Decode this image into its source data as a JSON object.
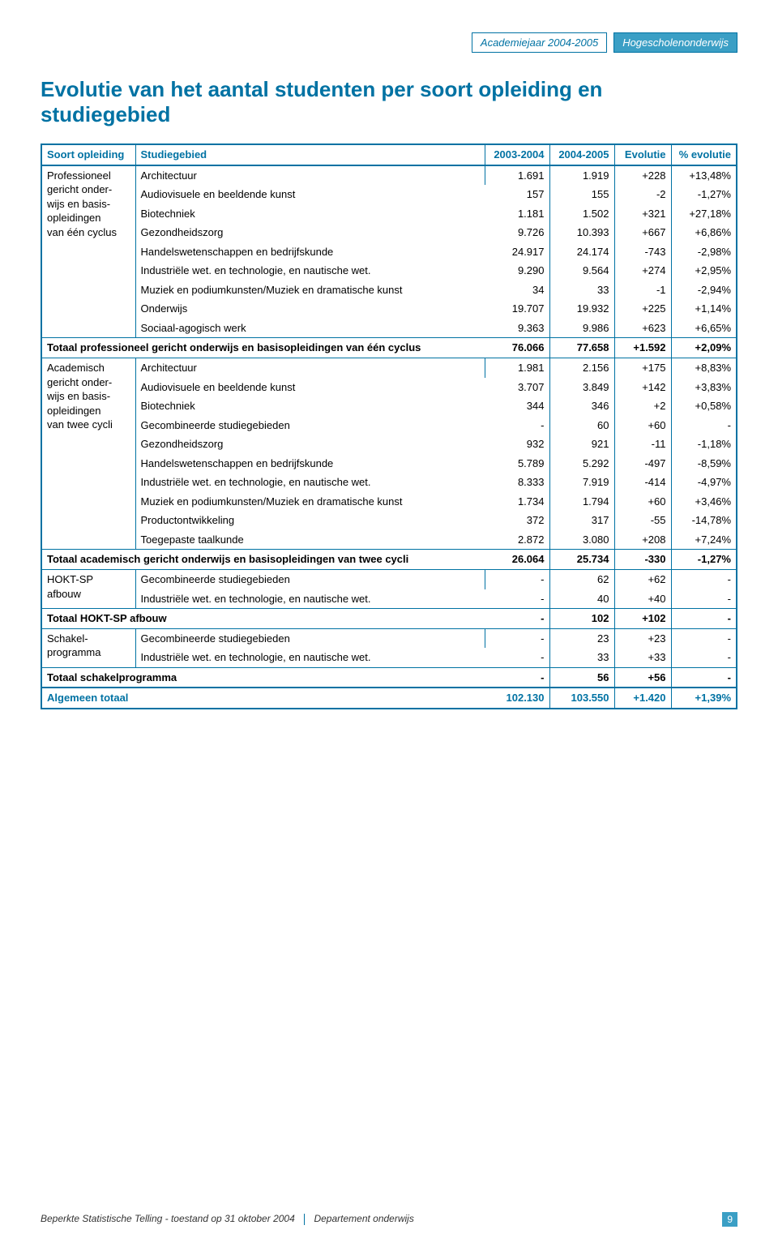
{
  "header": {
    "year_tag": "Academiejaar 2004-2005",
    "type_tag": "Hogescholenonderwijs"
  },
  "title": "Evolutie van het aantal studenten per soort opleiding en studiegebied",
  "table": {
    "columns": [
      "Soort opleiding",
      "Studiegebied",
      "2003-2004",
      "2004-2005",
      "Evolutie",
      "% evolutie"
    ],
    "groups": [
      {
        "category_lines": [
          "Professioneel",
          "gericht onder-",
          "wijs en basis-",
          "opleidingen",
          "van één cyclus"
        ],
        "rows": [
          {
            "label": "Architectuur",
            "v": [
              "1.691",
              "1.919",
              "+228",
              "+13,48%"
            ]
          },
          {
            "label": "Audiovisuele en beeldende kunst",
            "v": [
              "157",
              "155",
              "-2",
              "-1,27%"
            ]
          },
          {
            "label": "Biotechniek",
            "v": [
              "1.181",
              "1.502",
              "+321",
              "+27,18%"
            ]
          },
          {
            "label": "Gezondheidszorg",
            "v": [
              "9.726",
              "10.393",
              "+667",
              "+6,86%"
            ]
          },
          {
            "label": "Handelswetenschappen en bedrijfskunde",
            "v": [
              "24.917",
              "24.174",
              "-743",
              "-2,98%"
            ]
          },
          {
            "label": "Industriële wet. en technologie, en nautische wet.",
            "v": [
              "9.290",
              "9.564",
              "+274",
              "+2,95%"
            ]
          },
          {
            "label": "Muziek en podiumkunsten/Muziek en dramatische kunst",
            "v": [
              "34",
              "33",
              "-1",
              "-2,94%"
            ]
          },
          {
            "label": "Onderwijs",
            "v": [
              "19.707",
              "19.932",
              "+225",
              "+1,14%"
            ]
          },
          {
            "label": "Sociaal-agogisch werk",
            "v": [
              "9.363",
              "9.986",
              "+623",
              "+6,65%"
            ]
          }
        ],
        "subtotal": {
          "label": "Totaal professioneel gericht onderwijs en basisopleidingen van één cyclus",
          "v": [
            "76.066",
            "77.658",
            "+1.592",
            "+2,09%"
          ]
        }
      },
      {
        "category_lines": [
          "Academisch",
          "gericht onder-",
          "wijs en basis-",
          "opleidingen",
          "van twee cycli"
        ],
        "rows": [
          {
            "label": "Architectuur",
            "v": [
              "1.981",
              "2.156",
              "+175",
              "+8,83%"
            ]
          },
          {
            "label": "Audiovisuele en beeldende kunst",
            "v": [
              "3.707",
              "3.849",
              "+142",
              "+3,83%"
            ]
          },
          {
            "label": "Biotechniek",
            "v": [
              "344",
              "346",
              "+2",
              "+0,58%"
            ]
          },
          {
            "label": "Gecombineerde studiegebieden",
            "v": [
              "-",
              "60",
              "+60",
              "-"
            ]
          },
          {
            "label": "Gezondheidszorg",
            "v": [
              "932",
              "921",
              "-11",
              "-1,18%"
            ]
          },
          {
            "label": "Handelswetenschappen en bedrijfskunde",
            "v": [
              "5.789",
              "5.292",
              "-497",
              "-8,59%"
            ]
          },
          {
            "label": "Industriële wet. en technologie, en nautische wet.",
            "v": [
              "8.333",
              "7.919",
              "-414",
              "-4,97%"
            ]
          },
          {
            "label": "Muziek en podiumkunsten/Muziek en dramatische kunst",
            "v": [
              "1.734",
              "1.794",
              "+60",
              "+3,46%"
            ]
          },
          {
            "label": "Productontwikkeling",
            "v": [
              "372",
              "317",
              "-55",
              "-14,78%"
            ]
          },
          {
            "label": "Toegepaste taalkunde",
            "v": [
              "2.872",
              "3.080",
              "+208",
              "+7,24%"
            ]
          }
        ],
        "subtotal": {
          "label": "Totaal academisch gericht onderwijs en basisopleidingen van twee cycli",
          "v": [
            "26.064",
            "25.734",
            "-330",
            "-1,27%"
          ]
        }
      },
      {
        "category_lines": [
          "HOKT-SP",
          "afbouw"
        ],
        "rows": [
          {
            "label": "Gecombineerde studiegebieden",
            "v": [
              "-",
              "62",
              "+62",
              "-"
            ]
          },
          {
            "label": "Industriële wet. en technologie, en nautische wet.",
            "v": [
              "-",
              "40",
              "+40",
              "-"
            ]
          }
        ],
        "subtotal": {
          "label": "Totaal HOKT-SP afbouw",
          "v": [
            "-",
            "102",
            "+102",
            "-"
          ]
        }
      },
      {
        "category_lines": [
          "Schakel-",
          "programma"
        ],
        "rows": [
          {
            "label": "Gecombineerde studiegebieden",
            "v": [
              "-",
              "23",
              "+23",
              "-"
            ]
          },
          {
            "label": "Industriële wet. en technologie, en nautische wet.",
            "v": [
              "-",
              "33",
              "+33",
              "-"
            ]
          }
        ],
        "subtotal": {
          "label": "Totaal schakelprogramma",
          "v": [
            "-",
            "56",
            "+56",
            "-"
          ]
        }
      }
    ],
    "grandtotal": {
      "label": "Algemeen totaal",
      "v": [
        "102.130",
        "103.550",
        "+1.420",
        "+1,39%"
      ]
    }
  },
  "footer": {
    "left": "Beperkte Statistische Telling - toestand op 31 oktober 2004",
    "center": "Departement onderwijs",
    "page": "9"
  },
  "colors": {
    "brand": "#0072a3",
    "brand_light": "#3b9fc5",
    "text": "#000000",
    "bg": "#ffffff"
  }
}
